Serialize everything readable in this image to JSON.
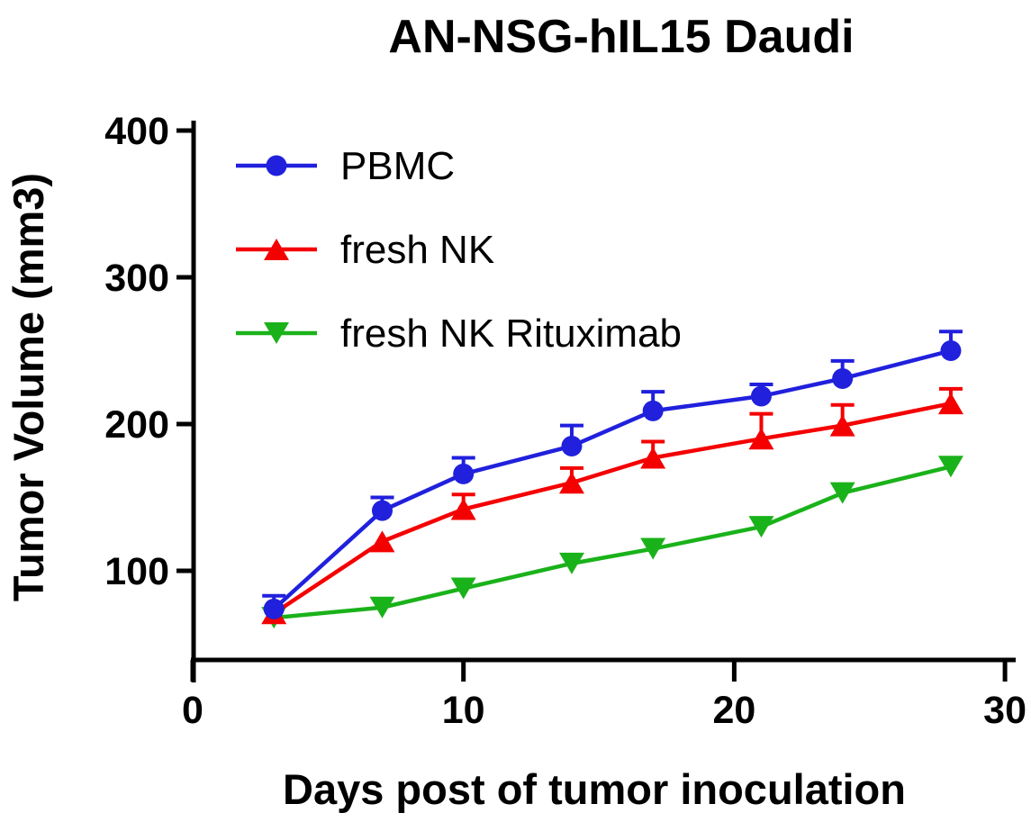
{
  "title": "AN-NSG-hIL15   Daudi",
  "chart_data": {
    "type": "line",
    "title": "AN-NSG-hIL15   Daudi",
    "xlabel": "Days post of tumor inoculation",
    "ylabel": "Tumor Volume (mm3)",
    "x": [
      3,
      7,
      10,
      14,
      17,
      21,
      24,
      28
    ],
    "x_ticks": [
      "0",
      "10",
      "20",
      "30"
    ],
    "x_tick_values": [
      0,
      10,
      20,
      30
    ],
    "y_ticks": [
      "100",
      "200",
      "300",
      "400"
    ],
    "y_tick_values": [
      100,
      200,
      300,
      400
    ],
    "xlim": [
      0,
      30
    ],
    "ylim": [
      40,
      400
    ],
    "grid": false,
    "legend_position": "inside-top-left",
    "error_bars": "upper-only",
    "axis_color": "#000000",
    "series": [
      {
        "name": "PBMC",
        "color": "#2020dd",
        "marker": "circle",
        "values": [
          74,
          141,
          166,
          185,
          209,
          219,
          231,
          250
        ],
        "err_up": [
          9,
          9,
          11,
          14,
          13,
          8,
          12,
          13
        ]
      },
      {
        "name": "fresh NK",
        "color": "#f50000",
        "marker": "triangle-up",
        "values": [
          71,
          120,
          142,
          160,
          177,
          190,
          199,
          214
        ],
        "err_up": [
          0,
          0,
          10,
          10,
          11,
          17,
          14,
          10
        ]
      },
      {
        "name": "fresh NK Rituximab",
        "color": "#1ab21a",
        "marker": "triangle-down",
        "values": [
          68,
          75,
          88,
          105,
          115,
          130,
          153,
          171
        ],
        "err_up": [
          0,
          0,
          0,
          0,
          0,
          0,
          0,
          0
        ]
      }
    ]
  }
}
